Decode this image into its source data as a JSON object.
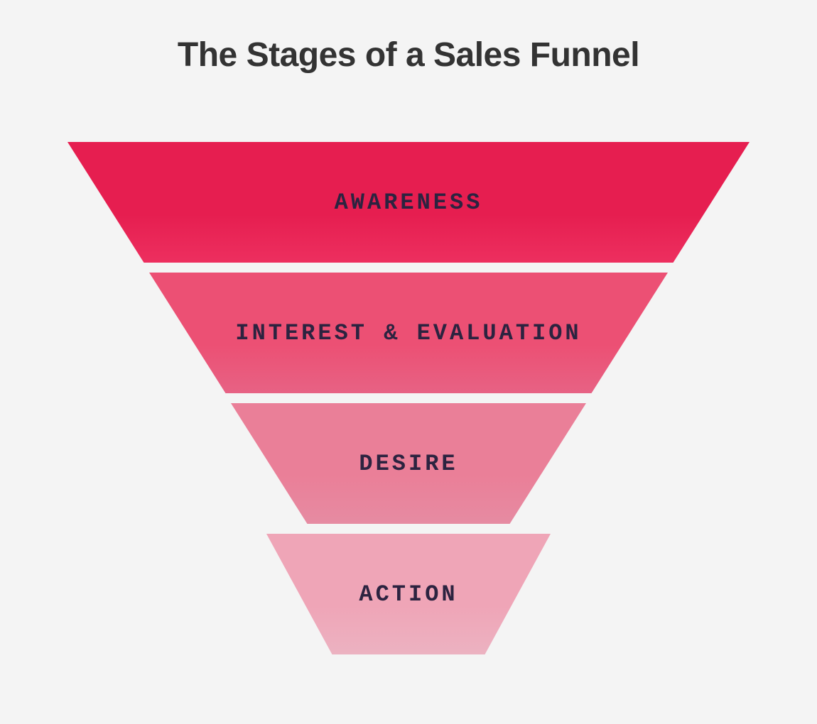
{
  "title": "The Stages of a Sales Funnel",
  "background_color": "#f4f4f4",
  "title_color": "#333333",
  "title_fontsize": 48,
  "label_color": "#2c2340",
  "label_fontsize": 32,
  "label_letter_spacing": 4,
  "funnel": {
    "type": "funnel",
    "stage_gap": 14,
    "stage_height": 170,
    "stages": [
      {
        "label": "AWARENESS",
        "fill_start": "#e61e50",
        "fill_end": "#ed2f5f",
        "top_width": 960,
        "bottom_width": 745
      },
      {
        "label": "INTEREST & EVALUATION",
        "fill_start": "#ec5074",
        "fill_end": "#e76284",
        "top_width": 730,
        "bottom_width": 515
      },
      {
        "label": "DESIRE",
        "fill_start": "#ea7f98",
        "fill_end": "#e68ba2",
        "top_width": 500,
        "bottom_width": 285
      },
      {
        "label": "ACTION",
        "fill_start": "#efa5b7",
        "fill_end": "#ecb2c1",
        "top_width": 400,
        "bottom_width": 215
      }
    ]
  }
}
